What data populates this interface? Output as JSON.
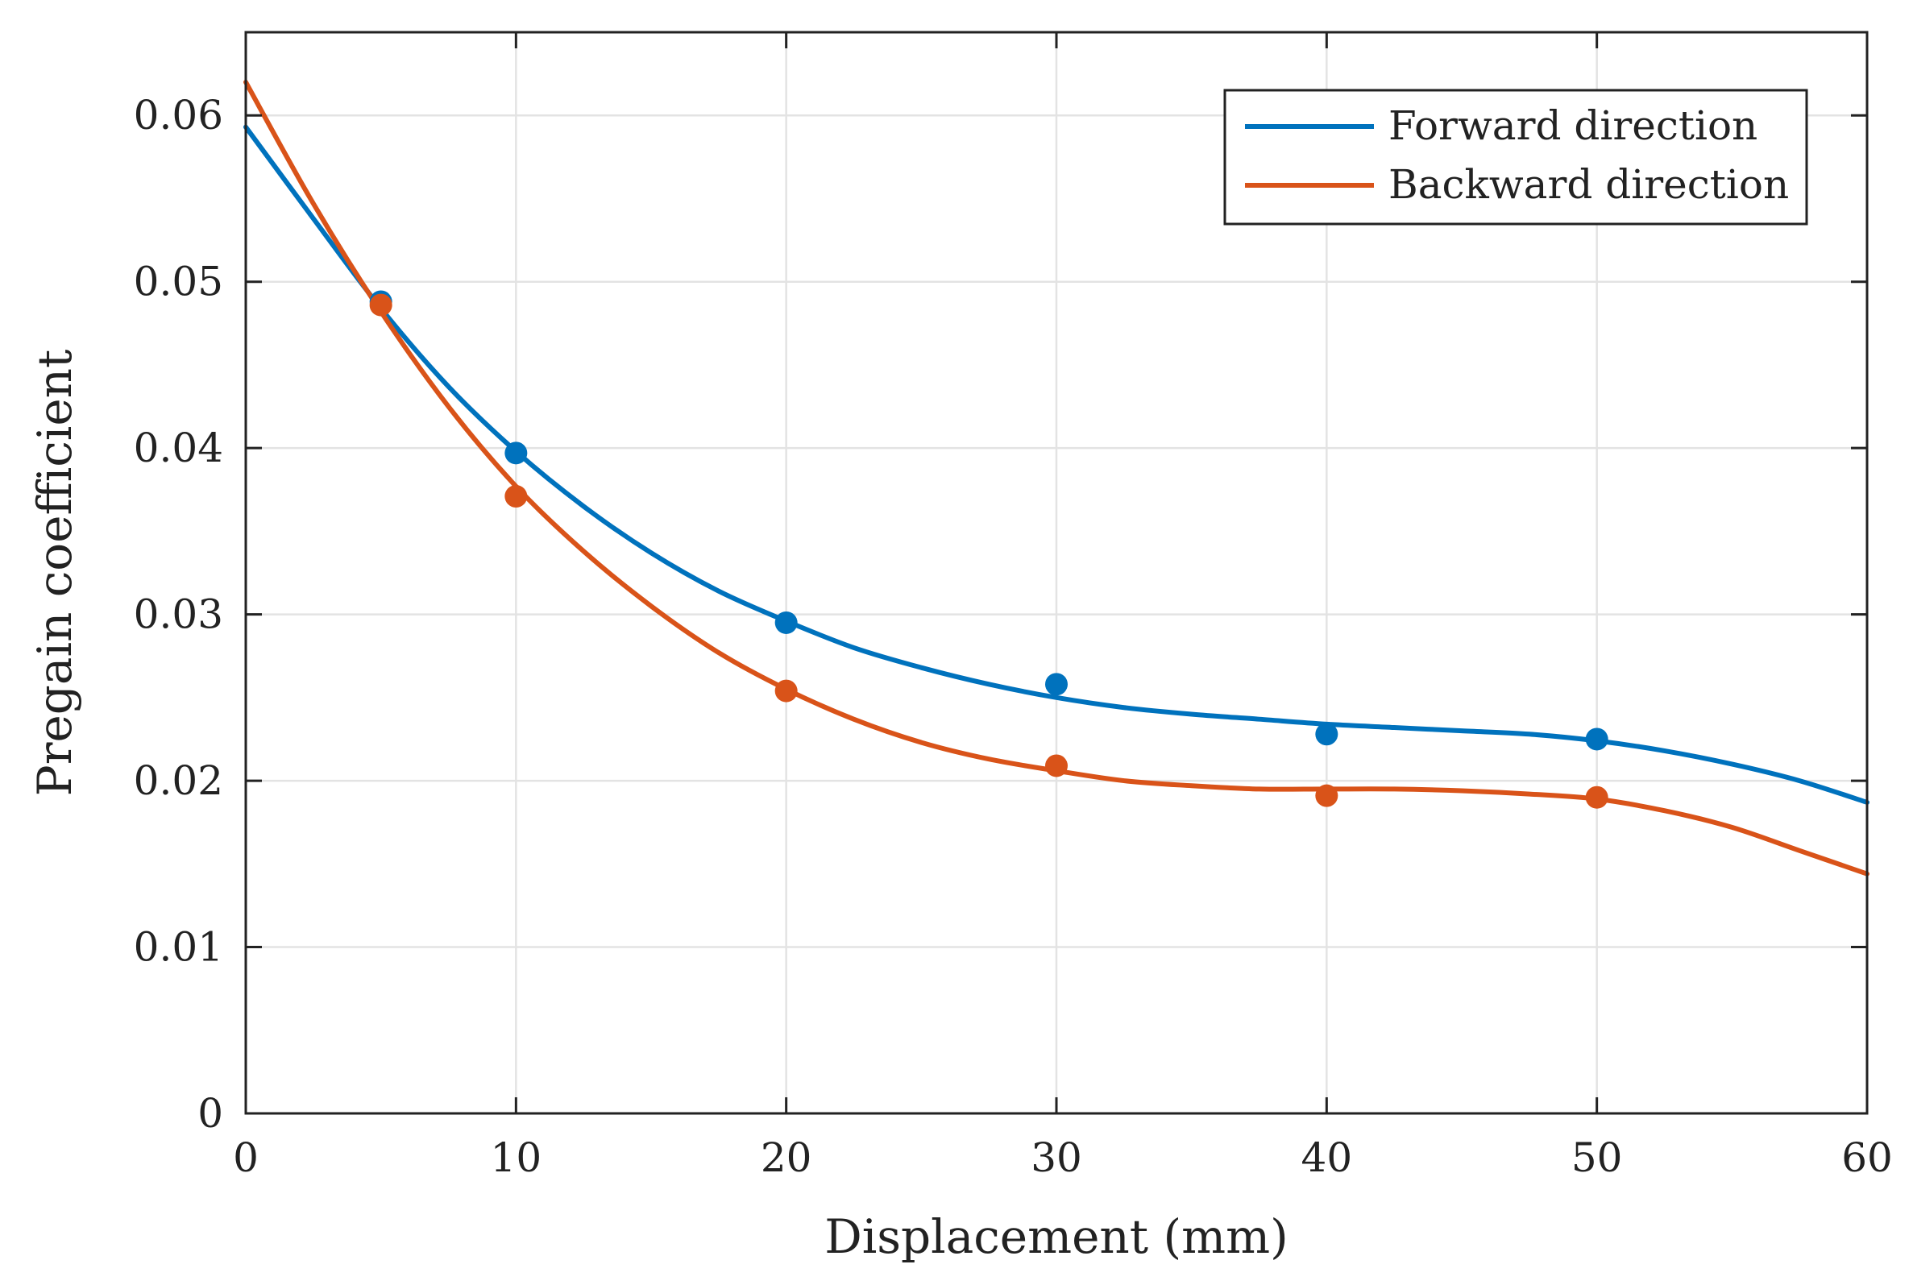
{
  "chart_data": {
    "type": "line",
    "title": "",
    "xlabel": "Displacement (mm)",
    "ylabel": "Pregain coefficient",
    "xlim": [
      0,
      60
    ],
    "ylim": [
      0,
      0.065
    ],
    "x_ticks": [
      0,
      10,
      20,
      30,
      40,
      50,
      60
    ],
    "x_tick_labels": [
      "0",
      "10",
      "20",
      "30",
      "40",
      "50",
      "60"
    ],
    "y_ticks": [
      0,
      0.01,
      0.02,
      0.03,
      0.04,
      0.05,
      0.06
    ],
    "y_tick_labels": [
      "0",
      "0.01",
      "0.02",
      "0.03",
      "0.04",
      "0.05",
      "0.06"
    ],
    "grid": true,
    "legend_position": "top-right",
    "series": [
      {
        "name": "Forward direction",
        "color": "#0072BD",
        "points": {
          "x": [
            5,
            10,
            20,
            30,
            40,
            50
          ],
          "y": [
            0.0488,
            0.0397,
            0.0295,
            0.0258,
            0.0228,
            0.0225
          ]
        },
        "fit": {
          "x": [
            0,
            2.5,
            5,
            7.5,
            10,
            12.5,
            15,
            17.5,
            20,
            22.5,
            25,
            27.5,
            30,
            32.5,
            35,
            37.5,
            40,
            42.5,
            45,
            47.5,
            50,
            52.5,
            55,
            57.5,
            60
          ],
          "y": [
            0.0593,
            0.0538,
            0.0484,
            0.0437,
            0.0398,
            0.0365,
            0.0337,
            0.0314,
            0.0296,
            0.028,
            0.0268,
            0.0258,
            0.025,
            0.0244,
            0.024,
            0.0237,
            0.0234,
            0.0232,
            0.023,
            0.0228,
            0.0224,
            0.0218,
            0.021,
            0.02,
            0.0187
          ]
        }
      },
      {
        "name": "Backward direction",
        "color": "#D95319",
        "points": {
          "x": [
            5,
            10,
            20,
            30,
            40,
            50
          ],
          "y": [
            0.0486,
            0.0371,
            0.0254,
            0.0209,
            0.0191,
            0.019
          ]
        },
        "fit": {
          "x": [
            0,
            2.5,
            5,
            7.5,
            10,
            12.5,
            15,
            17.5,
            20,
            22.5,
            25,
            27.5,
            30,
            32.5,
            35,
            37.5,
            40,
            42.5,
            45,
            47.5,
            50,
            52.5,
            55,
            57.5,
            60
          ],
          "y": [
            0.062,
            0.0547,
            0.0482,
            0.0425,
            0.0377,
            0.0338,
            0.0305,
            0.0277,
            0.0255,
            0.0237,
            0.0223,
            0.0213,
            0.0206,
            0.02,
            0.0197,
            0.0195,
            0.0195,
            0.0195,
            0.0194,
            0.0192,
            0.0189,
            0.0182,
            0.0172,
            0.0158,
            0.0144
          ]
        }
      }
    ]
  }
}
